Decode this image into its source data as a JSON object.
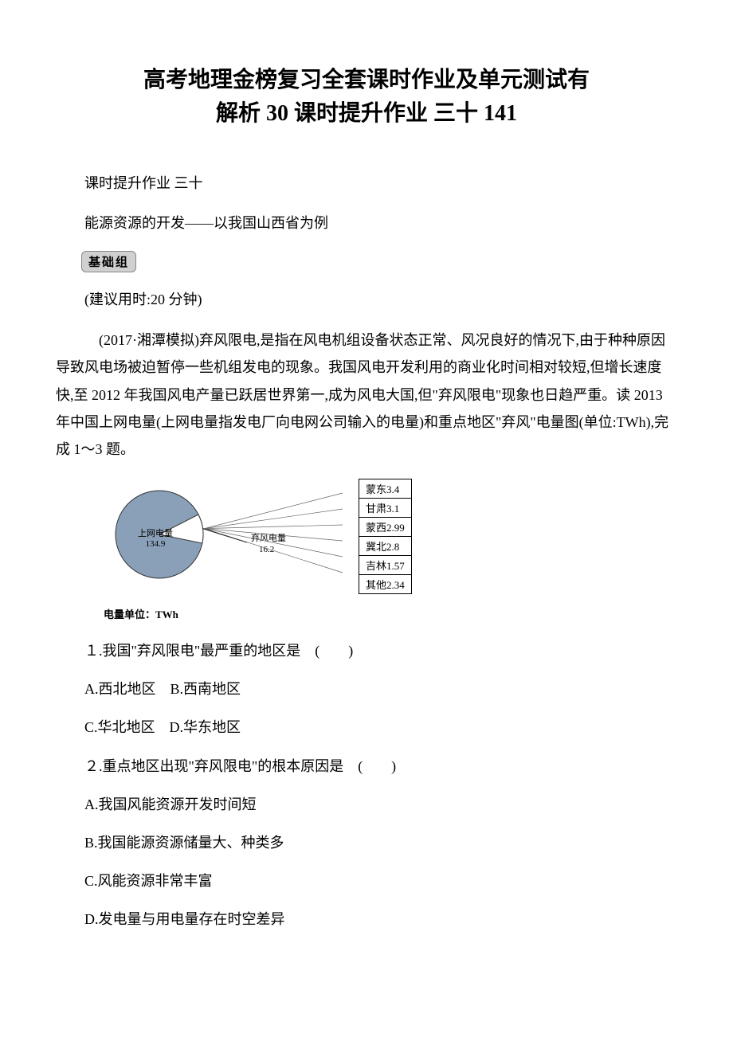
{
  "title_line1": "高考地理金榜复习全套课时作业及单元测试有",
  "title_line2": "解析 30 课时提升作业 三十 141",
  "sub1": "课时提升作业 三十",
  "sub2": "能源资源的开发——以我国山西省为例",
  "badge": "基础组",
  "time_hint": "(建议用时:20 分钟)",
  "passage": "(2017·湘潭模拟)弃风限电,是指在风电机组设备状态正常、风况良好的情况下,由于种种原因导致风电场被迫暂停一些机组发电的现象。我国风电开发利用的商业化时间相对较短,但增长速度快,至 2012 年我国风电产量已跃居世界第一,成为风电大国,但\"弃风限电\"现象也日趋严重。读 2013 年中国上网电量(上网电量指发电厂向电网公司输入的电量)和重点地区\"弃风\"电量图(单位:TWh),完成 1～3 题。",
  "chart": {
    "type": "pie",
    "background_color": "#ffffff",
    "pie_radius": 55,
    "slices": [
      {
        "label": "上网电量",
        "value": 134.9,
        "color": "#8aa0b8",
        "label_fontsize": 11
      },
      {
        "label": "弃风电量",
        "value": 16.2,
        "color": "#ffffff",
        "label_fontsize": 11
      }
    ],
    "caption": "电量单位：TWh",
    "caption_fontsize": 13,
    "table": {
      "rows": [
        [
          "蒙东3.4"
        ],
        [
          "甘肃3.1"
        ],
        [
          "蒙西2.99"
        ],
        [
          "冀北2.8"
        ],
        [
          "吉林1.57"
        ],
        [
          "其他2.34"
        ]
      ],
      "border_color": "#000000",
      "fontsize": 13
    },
    "connector_color": "#000000"
  },
  "q1": {
    "num": "１.",
    "stem": "我国\"弃风限电\"最严重的地区是　(　　)",
    "optA": "A.西北地区",
    "optB": "B.西南地区",
    "optC": "C.华北地区",
    "optD": "D.华东地区"
  },
  "q2": {
    "num": "２.",
    "stem": "重点地区出现\"弃风限电\"的根本原因是　(　　)",
    "optA": "A.我国风能资源开发时间短",
    "optB": "B.我国能源资源储量大、种类多",
    "optC": "C.风能资源非常丰富",
    "optD": "D.发电量与用电量存在时空差异"
  }
}
